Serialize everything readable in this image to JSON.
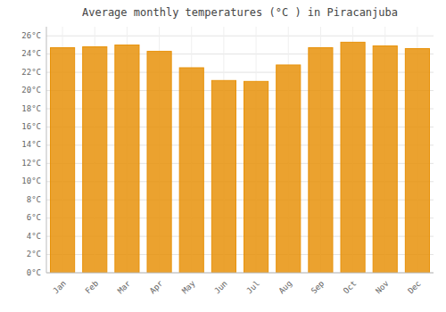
{
  "chart_data": {
    "type": "bar",
    "title": "Average monthly temperatures (°C ) in Piracanjuba",
    "categories": [
      "Jan",
      "Feb",
      "Mar",
      "Apr",
      "May",
      "Jun",
      "Jul",
      "Aug",
      "Sep",
      "Oct",
      "Nov",
      "Dec"
    ],
    "values": [
      24.7,
      24.8,
      25.0,
      24.3,
      22.5,
      21.1,
      21.0,
      22.8,
      24.7,
      25.3,
      24.9,
      24.6
    ],
    "color": "#E8920A",
    "ylim": [
      0,
      27
    ],
    "yticks": [
      {
        "value": 0,
        "label": "0°C"
      },
      {
        "value": 2,
        "label": "2°C"
      },
      {
        "value": 4,
        "label": "4°C"
      },
      {
        "value": 6,
        "label": "6°C"
      },
      {
        "value": 8,
        "label": "8°C"
      },
      {
        "value": 10,
        "label": "10°C"
      },
      {
        "value": 12,
        "label": "12°C"
      },
      {
        "value": 14,
        "label": "14°C"
      },
      {
        "value": 16,
        "label": "16°C"
      },
      {
        "value": 18,
        "label": "18°C"
      },
      {
        "value": 20,
        "label": "20°C"
      },
      {
        "value": 22,
        "label": "22°C"
      },
      {
        "value": 24,
        "label": "24°C"
      },
      {
        "value": 26,
        "label": "26°C"
      }
    ],
    "grid": true
  }
}
